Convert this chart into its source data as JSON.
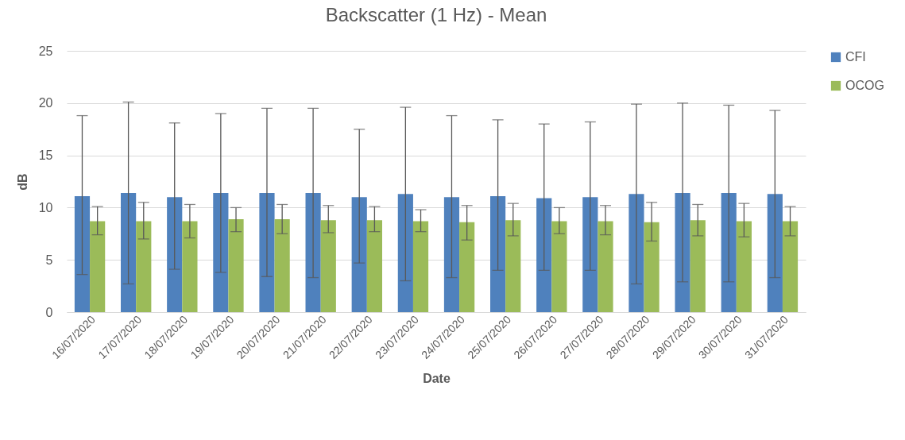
{
  "chart_data": {
    "type": "bar",
    "title": "Backscatter (1 Hz) - Mean",
    "xlabel": "Date",
    "ylabel": "dB",
    "categories": [
      "16/07/2020",
      "17/07/2020",
      "18/07/2020",
      "19/07/2020",
      "20/07/2020",
      "21/07/2020",
      "22/07/2020",
      "23/07/2020",
      "24/07/2020",
      "25/07/2020",
      "26/07/2020",
      "27/07/2020",
      "28/07/2020",
      "29/07/2020",
      "30/07/2020",
      "31/07/2020"
    ],
    "series": [
      {
        "name": "CFI",
        "color": "#4f81bd",
        "values": [
          11.1,
          11.4,
          11.0,
          11.4,
          11.4,
          11.4,
          11.0,
          11.3,
          11.0,
          11.1,
          10.9,
          11.0,
          11.3,
          11.4,
          11.4,
          11.3
        ],
        "errors": [
          [
            3.6,
            18.8
          ],
          [
            2.7,
            20.1
          ],
          [
            4.1,
            18.1
          ],
          [
            3.8,
            19.0
          ],
          [
            3.4,
            19.5
          ],
          [
            3.3,
            19.5
          ],
          [
            4.7,
            17.5
          ],
          [
            3.0,
            19.6
          ],
          [
            3.3,
            18.8
          ],
          [
            4.0,
            18.4
          ],
          [
            4.0,
            18.0
          ],
          [
            4.0,
            18.2
          ],
          [
            2.7,
            19.9
          ],
          [
            2.9,
            20.0
          ],
          [
            2.9,
            19.8
          ],
          [
            3.3,
            19.3
          ]
        ]
      },
      {
        "name": "OCOG",
        "color": "#9bbb59",
        "values": [
          8.7,
          8.7,
          8.7,
          8.9,
          8.9,
          8.8,
          8.8,
          8.7,
          8.6,
          8.8,
          8.7,
          8.7,
          8.6,
          8.8,
          8.7,
          8.7
        ],
        "errors": [
          [
            7.4,
            10.1
          ],
          [
            7.0,
            10.5
          ],
          [
            7.1,
            10.3
          ],
          [
            7.7,
            10.0
          ],
          [
            7.5,
            10.3
          ],
          [
            7.6,
            10.2
          ],
          [
            7.7,
            10.1
          ],
          [
            7.7,
            9.8
          ],
          [
            6.9,
            10.2
          ],
          [
            7.3,
            10.4
          ],
          [
            7.5,
            10.0
          ],
          [
            7.4,
            10.2
          ],
          [
            6.8,
            10.5
          ],
          [
            7.3,
            10.3
          ],
          [
            7.2,
            10.4
          ],
          [
            7.3,
            10.1
          ]
        ]
      }
    ],
    "ylim": [
      0,
      25
    ],
    "yticks": [
      0,
      5,
      10,
      15,
      20,
      25
    ],
    "grid": "y",
    "legend": "right"
  }
}
